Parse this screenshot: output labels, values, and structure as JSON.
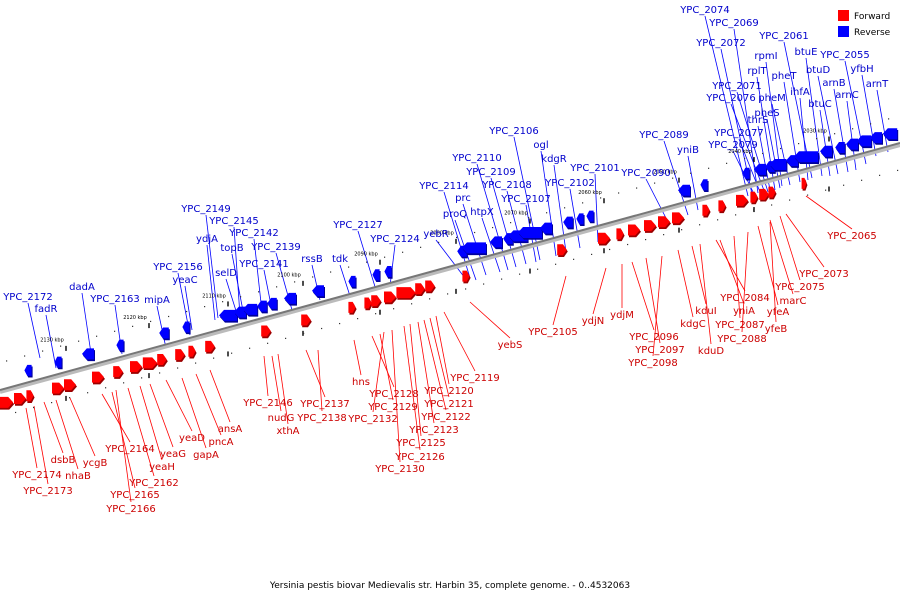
{
  "caption": "Yersinia pestis biovar Medievalis str. Harbin 35, complete genome. - 0..4532063",
  "colors": {
    "forward": "#ff0000",
    "reverse": "#0000ff",
    "axis": "#888888"
  },
  "legend": [
    {
      "label": "Forward",
      "color": "#ff0000"
    },
    {
      "label": "Reverse",
      "color": "#0000ff"
    }
  ],
  "ticks": [
    "2130 kbp",
    "2120 kbp",
    "2110 kbp",
    "2100 kbp",
    "2090 kbp",
    "2080 kbp",
    "2070 kbp",
    "2060 kbp",
    "2050 kbp",
    "2040 kbp",
    "2030 kbp"
  ],
  "reverse_labels": [
    "YPC_2172",
    "fadR",
    "dadA",
    "YPC_2163",
    "mipA",
    "YPC_2156",
    "yeaC",
    "YPC_2149",
    "ydjA",
    "YPC_2145",
    "selD",
    "topB",
    "YPC_2142",
    "YPC_2141",
    "YPC_2139",
    "rssB",
    "tdk",
    "YPC_2127",
    "YPC_2124",
    "yebR",
    "proQ",
    "prc",
    "YPC_2114",
    "htpX",
    "YPC_2110",
    "YPC_2109",
    "YPC_2108",
    "YPC_2107",
    "YPC_2106",
    "ogl",
    "kdgR",
    "YPC_2102",
    "YPC_2101",
    "YPC_2090",
    "YPC_2089",
    "yniB",
    "YPC_2079",
    "YPC_2077",
    "thrS",
    "pheS",
    "YPC_2076",
    "YPC_2071",
    "pheM",
    "ihfA",
    "rplT",
    "pheT",
    "rpmI",
    "YPC_2072",
    "YPC_2069",
    "YPC_2074",
    "btuC",
    "arnC",
    "arnB",
    "btuD",
    "btuE",
    "YPC_2061",
    "YPC_2055",
    "yfbH",
    "arnT"
  ],
  "forward_labels": [
    "YPC_2174",
    "YPC_2173",
    "dsbB",
    "nhaB",
    "ycgB",
    "YPC_2164",
    "YPC_2165",
    "YPC_2166",
    "YPC_2162",
    "yeaH",
    "yeaG",
    "yeaD",
    "gapA",
    "pncA",
    "ansA",
    "YPC_2146",
    "nudG",
    "xthA",
    "YPC_2137",
    "YPC_2138",
    "hns",
    "YPC_2128",
    "YPC_2129",
    "YPC_2132",
    "YPC_2130",
    "YPC_2126",
    "YPC_2125",
    "YPC_2123",
    "YPC_2122",
    "YPC_2121",
    "YPC_2120",
    "YPC_2119",
    "yebS",
    "YPC_2105",
    "ydjN",
    "ydjM",
    "YPC_2096",
    "YPC_2097",
    "YPC_2098",
    "kdgC",
    "kduI",
    "kduD",
    "yniA",
    "YPC_2084",
    "YPC_2087",
    "YPC_2088",
    "yfeA",
    "yfeB",
    "marC",
    "YPC_2075",
    "YPC_2073",
    "YPC_2065"
  ]
}
